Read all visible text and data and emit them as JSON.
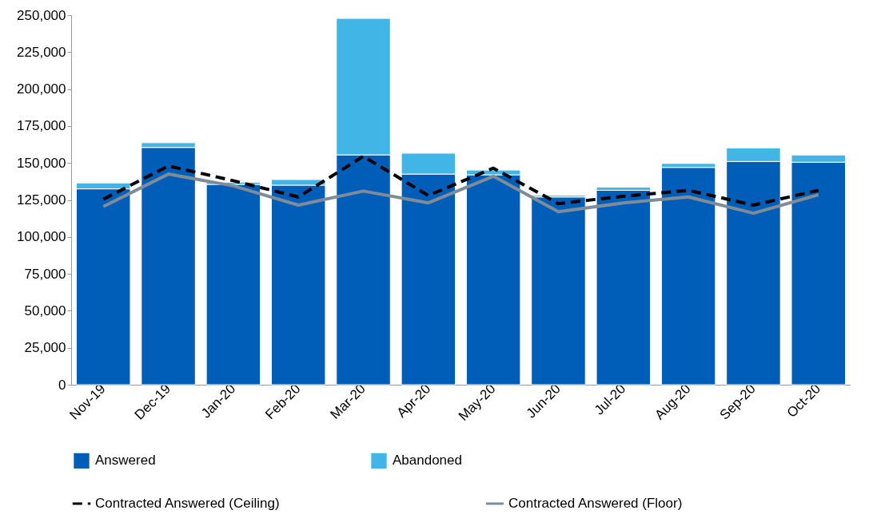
{
  "chart_data": {
    "type": "bar",
    "stacked": true,
    "categories": [
      "Nov-19",
      "Dec-19",
      "Jan-20",
      "Feb-20",
      "Mar-20",
      "Apr-20",
      "May-20",
      "Jun-20",
      "Jul-20",
      "Aug-20",
      "Sep-20",
      "Oct-20"
    ],
    "series": [
      {
        "name": "Answered",
        "color": "#005eb8",
        "values": [
          132500,
          160500,
          135500,
          135000,
          155500,
          142500,
          142000,
          127000,
          131500,
          147000,
          151000,
          150500
        ]
      },
      {
        "name": "Abandoned",
        "color": "#41b6e6",
        "values": [
          4000,
          3200,
          1500,
          3800,
          92300,
          14100,
          3200,
          1100,
          2200,
          2700,
          9200,
          4900
        ]
      },
      {
        "name": "Contracted Answered (Ceiling)",
        "type": "line",
        "line_style": "dashed",
        "color": "#000000",
        "values": [
          125500,
          148000,
          138000,
          127000,
          154500,
          128000,
          146500,
          122500,
          127500,
          131500,
          121500,
          131500
        ]
      },
      {
        "name": "Contracted Answered (Floor)",
        "type": "line",
        "line_style": "solid",
        "color": "#7f8c98",
        "values": [
          120500,
          142500,
          134500,
          121500,
          131000,
          123000,
          141000,
          117000,
          123000,
          127000,
          116000,
          128500
        ]
      }
    ],
    "ylim": [
      0,
      250000
    ],
    "yticks": [
      0,
      {
        "value": 25000,
        "label": "25,000"
      },
      {
        "value": 50000,
        "label": "50,000"
      },
      {
        "value": 75000,
        "label": "75,000"
      },
      {
        "value": 100000,
        "label": "100,000"
      },
      {
        "value": 125000,
        "label": "125,000"
      },
      {
        "value": 150000,
        "label": "150,000"
      },
      {
        "value": 175000,
        "label": "175,000"
      },
      {
        "value": 200000,
        "label": "200,000"
      },
      {
        "value": 225000,
        "label": "225,000"
      },
      {
        "value": 250000,
        "label": "250,000"
      }
    ],
    "grid": false,
    "legend": "bottom"
  }
}
